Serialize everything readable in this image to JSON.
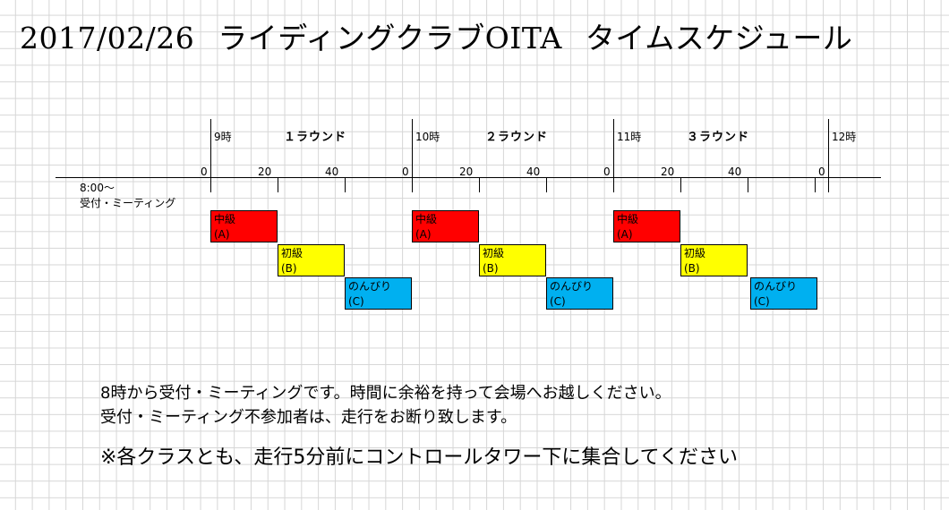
{
  "title": {
    "date": "2017/02/26",
    "club": "ライディングクラブOITA",
    "subtitle": "タイムスケジュール"
  },
  "hours": [
    "9時",
    "10時",
    "11時",
    "12時"
  ],
  "rounds": [
    "１ラウンド",
    "２ラウンド",
    "３ラウンド"
  ],
  "minute_ticks": [
    "0",
    "20",
    "40"
  ],
  "meeting": {
    "time": "8:00～",
    "label": "受付・ミーティング"
  },
  "classes": [
    {
      "name": "中級",
      "code": "(A)",
      "color": "#ff0000"
    },
    {
      "name": "初級",
      "code": "(B)",
      "color": "#ffff00"
    },
    {
      "name": "のんびり",
      "code": "(C)",
      "color": "#00b0f0"
    }
  ],
  "notes": [
    "8時から受付・ミーティングです。時間に余裕を持って会場へお越しください。",
    "受付・ミーティング不参加者は、走行をお断り致します。",
    "※各クラスとも、走行5分前にコントロールタワー下に集合してください"
  ]
}
